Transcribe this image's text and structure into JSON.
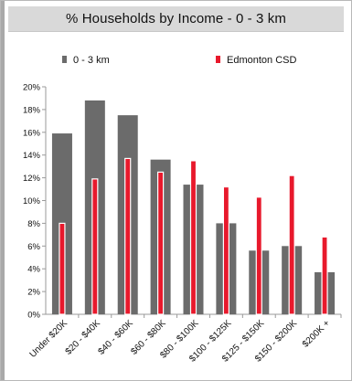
{
  "chart_data": {
    "type": "bar",
    "title": "% Households by Income - 0 - 3 km",
    "categories": [
      "Under $20K",
      "$20 - $40K",
      "$40 - $60K",
      "$60 - $80K",
      "$80 - $100K",
      "$100 - $125K",
      "$125 - $150K",
      "$150 - $200K",
      "$200K +"
    ],
    "series": [
      {
        "name": "0 - 3 km",
        "color": "#6b6b6b",
        "values": [
          15.9,
          18.8,
          17.5,
          13.6,
          11.4,
          8.0,
          5.6,
          6.0,
          3.7
        ]
      },
      {
        "name": "Edmonton CSD",
        "color": "#e8192c",
        "values": [
          8.0,
          11.9,
          13.7,
          12.5,
          13.5,
          11.2,
          10.3,
          12.2,
          6.8
        ]
      }
    ],
    "ylim": [
      0,
      20
    ],
    "yticks": [
      "0%",
      "2%",
      "4%",
      "6%",
      "8%",
      "10%",
      "12%",
      "14%",
      "16%",
      "18%",
      "20%"
    ],
    "legend_position": "top",
    "grid": false
  }
}
